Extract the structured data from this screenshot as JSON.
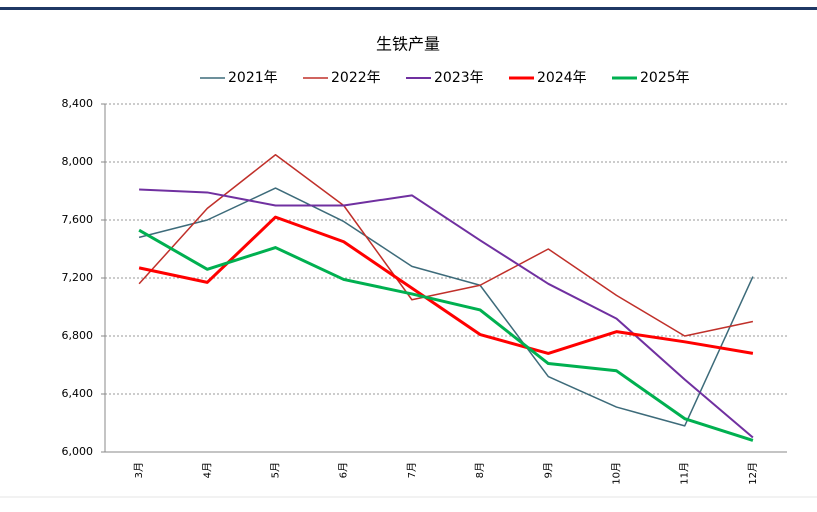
{
  "chart_data": {
    "type": "line",
    "title": "生铁产量",
    "categories": [
      "3月",
      "4月",
      "5月",
      "6月",
      "7月",
      "8月",
      "9月",
      "10月",
      "11月",
      "12月"
    ],
    "series": [
      {
        "name": "2021年",
        "color": "#3d6b7a",
        "values": [
          7480,
          7600,
          7820,
          7590,
          7280,
          7150,
          6520,
          6310,
          6180,
          7210
        ]
      },
      {
        "name": "2022年",
        "color": "#c0302a",
        "values": [
          7160,
          7680,
          8050,
          7700,
          7050,
          7150,
          7400,
          7080,
          6800,
          6900
        ]
      },
      {
        "name": "2023年",
        "color": "#7030a0",
        "values": [
          7810,
          7790,
          7700,
          7700,
          7770,
          7460,
          7160,
          6920,
          6500,
          6100
        ]
      },
      {
        "name": "2024年",
        "color": "#ff0000",
        "values": [
          7270,
          7170,
          7620,
          7450,
          7130,
          6810,
          6680,
          6830,
          6760,
          6680
        ]
      },
      {
        "name": "2025年",
        "color": "#00b050",
        "values": [
          7530,
          7260,
          7410,
          7190,
          7090,
          6980,
          6610,
          6560,
          6230,
          6080
        ]
      }
    ],
    "ylim": [
      6000,
      8400
    ],
    "yticks": [
      {
        "value": 6000,
        "label": "6,000"
      },
      {
        "value": 6400,
        "label": "6,400"
      },
      {
        "value": 6800,
        "label": "6,800"
      },
      {
        "value": 7200,
        "label": "7,200"
      },
      {
        "value": 7600,
        "label": "7,600"
      },
      {
        "value": 8000,
        "label": "8,000"
      },
      {
        "value": 8400,
        "label": "8,400"
      }
    ],
    "grid": true
  }
}
